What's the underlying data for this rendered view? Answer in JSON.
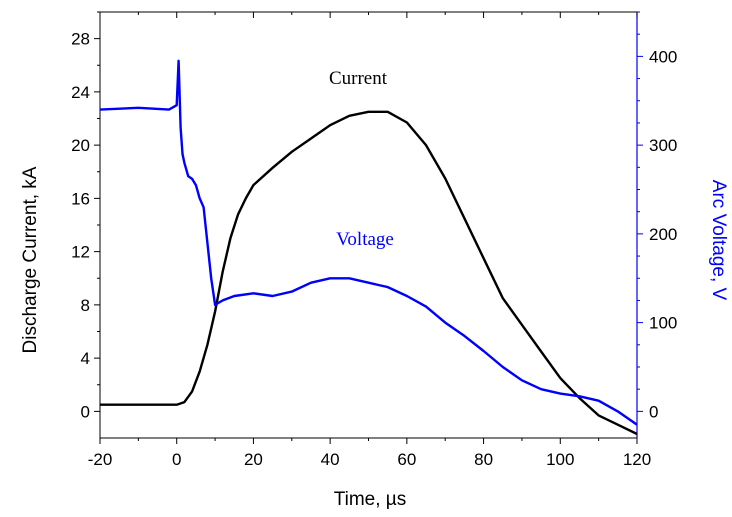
{
  "chart_data": {
    "type": "line",
    "title": "",
    "xlabel": "Time, µs",
    "ylabel_left": "Discharge Current, kA",
    "ylabel_right": "Arc Voltage, V",
    "xlim": [
      -20,
      120
    ],
    "ylim_left": [
      -2,
      30
    ],
    "ylim_right": [
      -30,
      450
    ],
    "x_ticks": [
      "-20",
      "0",
      "20",
      "40",
      "60",
      "80",
      "100",
      "120"
    ],
    "y_left_ticks": [
      "0",
      "4",
      "8",
      "12",
      "16",
      "20",
      "24",
      "28"
    ],
    "y_right_ticks": [
      "0",
      "100",
      "200",
      "300",
      "400"
    ],
    "colors": {
      "current": "#000000",
      "voltage": "#0000ff",
      "right_axis": "#0000ff"
    },
    "series": [
      {
        "name": "Current",
        "axis": "left",
        "x": [
          -20,
          -10,
          0,
          2,
          4,
          6,
          8,
          10,
          12,
          14,
          16,
          18,
          20,
          25,
          30,
          35,
          40,
          45,
          50,
          55,
          60,
          65,
          70,
          75,
          80,
          85,
          90,
          95,
          100,
          105,
          110,
          115,
          120
        ],
        "y": [
          0.5,
          0.5,
          0.5,
          0.7,
          1.5,
          3.0,
          5.0,
          7.5,
          10.5,
          13.0,
          14.8,
          16.0,
          17.0,
          18.3,
          19.5,
          20.5,
          21.5,
          22.2,
          22.5,
          22.5,
          21.7,
          20.0,
          17.5,
          14.5,
          11.5,
          8.5,
          6.5,
          4.5,
          2.5,
          1.0,
          -0.3,
          -1.0,
          -1.7
        ]
      },
      {
        "name": "Voltage",
        "axis": "right",
        "x": [
          -20,
          -10,
          -2,
          0,
          0.5,
          1,
          1.5,
          2,
          3,
          4,
          5,
          6,
          7,
          8,
          9,
          10,
          12,
          15,
          20,
          25,
          30,
          35,
          40,
          45,
          50,
          55,
          60,
          65,
          70,
          75,
          80,
          85,
          90,
          95,
          100,
          105,
          110,
          115,
          120
        ],
        "y": [
          340,
          342,
          340,
          345,
          395,
          320,
          290,
          280,
          265,
          262,
          255,
          240,
          230,
          190,
          150,
          120,
          125,
          130,
          133,
          130,
          135,
          145,
          150,
          150,
          145,
          140,
          130,
          118,
          100,
          85,
          68,
          50,
          35,
          25,
          20,
          17,
          12,
          0,
          -15
        ]
      }
    ],
    "series_labels": [
      "Current",
      "Voltage"
    ],
    "grid": false,
    "legend": "none"
  }
}
